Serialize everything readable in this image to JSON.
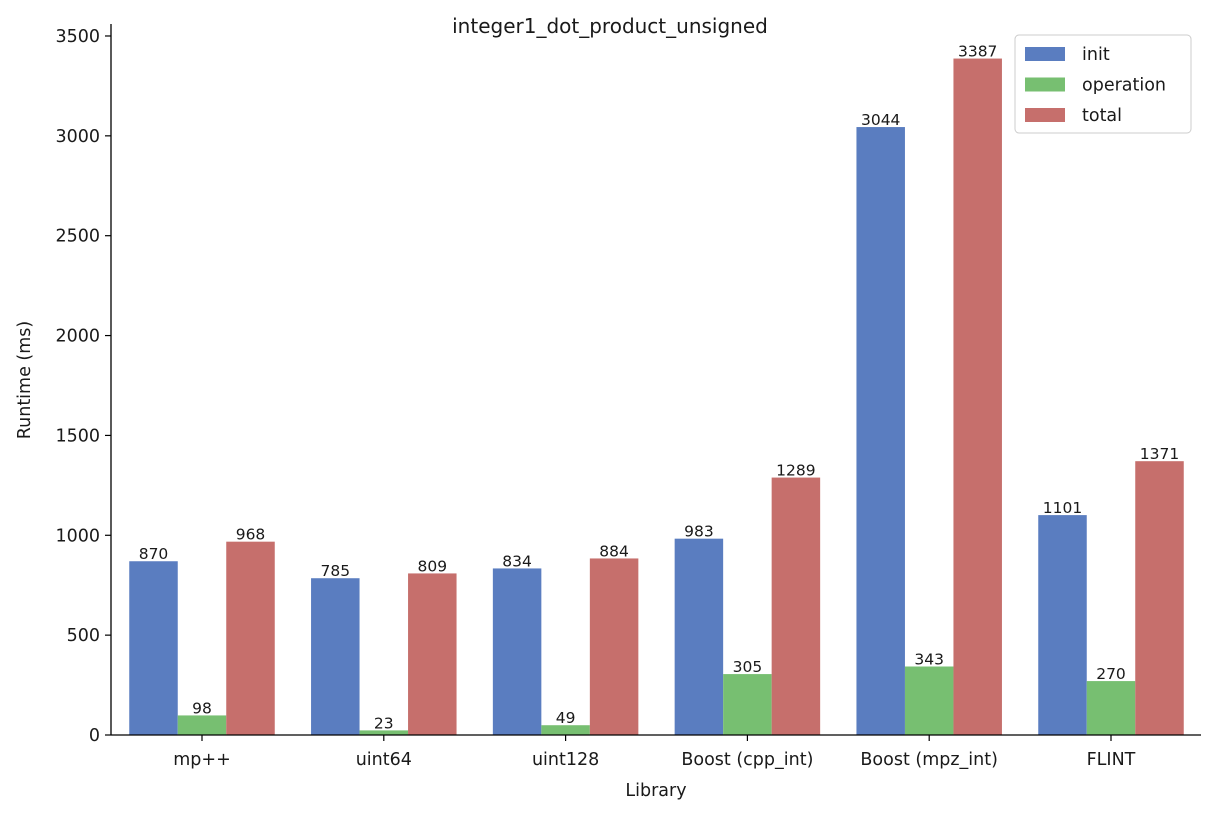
{
  "chart_data": {
    "type": "bar",
    "title": "integer1_dot_product_unsigned",
    "xlabel": "Library",
    "ylabel": "Runtime (ms)",
    "categories": [
      "mp++",
      "uint64",
      "uint128",
      "Boost (cpp_int)",
      "Boost (mpz_int)",
      "FLINT"
    ],
    "series": [
      {
        "name": "init",
        "color": "#5a7dc0",
        "values": [
          870,
          785,
          834,
          983,
          3044,
          1101
        ]
      },
      {
        "name": "operation",
        "color": "#77bf71",
        "values": [
          98,
          23,
          49,
          305,
          343,
          270
        ]
      },
      {
        "name": "total",
        "color": "#c66f6c",
        "values": [
          968,
          809,
          884,
          1289,
          3387,
          1371
        ]
      }
    ],
    "ylim": [
      0,
      3560
    ],
    "yticks": [
      0,
      500,
      1000,
      1500,
      2000,
      2500,
      3000,
      3500
    ],
    "grid": false,
    "legend_position": "top-right"
  }
}
